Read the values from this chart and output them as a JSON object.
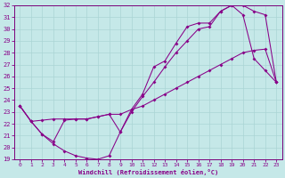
{
  "xlabel": "Windchill (Refroidissement éolien,°C)",
  "bg_color": "#c5e8e8",
  "grid_color": "#aad4d4",
  "line_color": "#880088",
  "spine_color": "#7a007a",
  "xlim": [
    -0.5,
    23.5
  ],
  "ylim": [
    19,
    32
  ],
  "xticks": [
    0,
    1,
    2,
    3,
    4,
    5,
    6,
    7,
    8,
    9,
    10,
    11,
    12,
    13,
    14,
    15,
    16,
    17,
    18,
    19,
    20,
    21,
    22,
    23
  ],
  "yticks": [
    19,
    20,
    21,
    22,
    23,
    24,
    25,
    26,
    27,
    28,
    29,
    30,
    31,
    32
  ],
  "line1_x": [
    0,
    1,
    2,
    3,
    4,
    5,
    6,
    7,
    8,
    9,
    10,
    11,
    12,
    13,
    14,
    15,
    16,
    17,
    18,
    19,
    20,
    21,
    22,
    23
  ],
  "line1_y": [
    23.5,
    22.2,
    21.1,
    20.3,
    19.7,
    19.3,
    19.1,
    19.0,
    19.3,
    21.3,
    23.0,
    24.3,
    25.5,
    26.8,
    28.0,
    29.0,
    30.0,
    30.2,
    31.5,
    32.0,
    31.2,
    27.5,
    26.5,
    25.5
  ],
  "line2_x": [
    0,
    1,
    2,
    3,
    4,
    5,
    6,
    7,
    8,
    9,
    10,
    11,
    12,
    13,
    14,
    15,
    16,
    17,
    18,
    19,
    20,
    21,
    22,
    23
  ],
  "line2_y": [
    23.5,
    22.2,
    22.3,
    22.4,
    22.4,
    22.4,
    22.4,
    22.6,
    22.8,
    22.8,
    23.2,
    23.5,
    24.0,
    24.5,
    25.0,
    25.5,
    26.0,
    26.5,
    27.0,
    27.5,
    28.0,
    28.2,
    28.3,
    25.5
  ],
  "line3_x": [
    0,
    1,
    2,
    3,
    4,
    5,
    6,
    7,
    8,
    9,
    10,
    11,
    12,
    13,
    14,
    15,
    16,
    17,
    18,
    19,
    20,
    21,
    22,
    23
  ],
  "line3_y": [
    23.5,
    22.2,
    21.1,
    20.5,
    22.3,
    22.4,
    22.4,
    22.6,
    22.8,
    21.3,
    23.2,
    24.5,
    26.8,
    27.3,
    28.8,
    30.2,
    30.5,
    30.5,
    31.5,
    32.0,
    32.0,
    31.5,
    31.2,
    25.5
  ]
}
